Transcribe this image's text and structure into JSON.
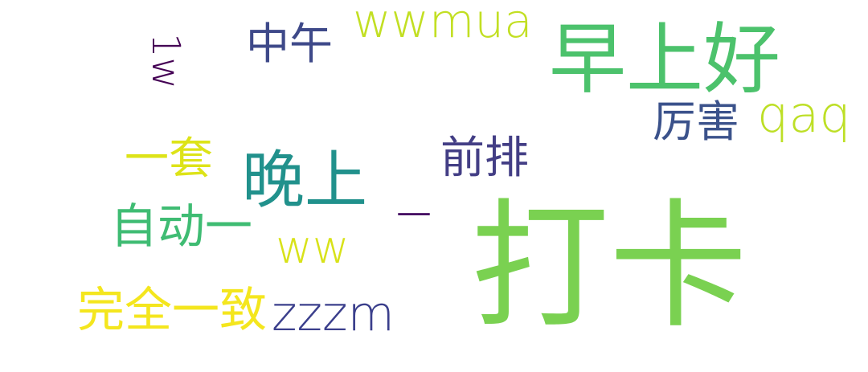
{
  "word_cloud": {
    "words": [
      {
        "text": "打卡",
        "color": "#7ad151"
      },
      {
        "text": "早上好",
        "color": "#4cc26c"
      },
      {
        "text": "晚上",
        "color": "#21918c"
      },
      {
        "text": "wwmua",
        "color": "#c2df23"
      },
      {
        "text": "中午",
        "color": "#3e4989"
      },
      {
        "text": "1w",
        "color": "#440154",
        "orientation": "vertical"
      },
      {
        "text": "厉害",
        "color": "#3b528b"
      },
      {
        "text": "qaq",
        "color": "#bddf26"
      },
      {
        "text": "一套",
        "color": "#dde318"
      },
      {
        "text": "前排",
        "color": "#433e85"
      },
      {
        "text": "_",
        "color": "#471164"
      },
      {
        "text": "自动一",
        "color": "#3fbc73"
      },
      {
        "text": "ww",
        "color": "#d8e219"
      },
      {
        "text": "完全一致",
        "color": "#f4e61e"
      },
      {
        "text": "zzzm",
        "color": "#3b3f8c"
      }
    ]
  }
}
